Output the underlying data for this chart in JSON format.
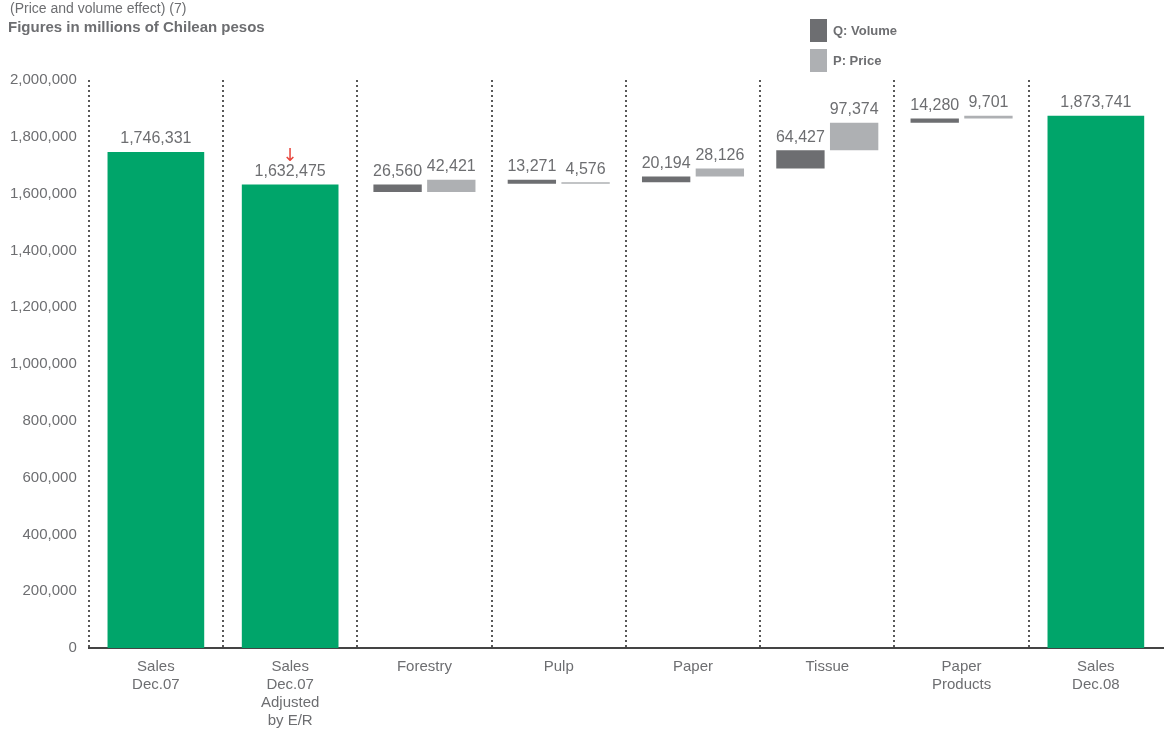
{
  "chart_data": {
    "type": "bar",
    "title": "Figures in millions of Chilean pesos",
    "subtitle": "(Price and volume effect) (7)",
    "categories": [
      "Sales Dec.07",
      "Sales Dec.07 Adjusted by E/R",
      "Forestry",
      "Pulp",
      "Paper",
      "Tissue",
      "Paper Products",
      "Sales Dec.08"
    ],
    "series": [
      {
        "color": "#00a56a",
        "values": [
          1746331,
          1632475,
          null,
          null,
          null,
          null,
          null,
          1873741
        ],
        "value_labels": [
          "1,746,331",
          "1,632,475",
          null,
          null,
          null,
          null,
          null,
          "1,873,741"
        ]
      },
      {
        "name": "Q: Volume",
        "color": "#6d6e71",
        "values": [
          null,
          null,
          26560,
          13271,
          20194,
          64427,
          14280,
          null
        ],
        "base": [
          null,
          null,
          1605915,
          1635065,
          1639641,
          1687961,
          1849762,
          null
        ],
        "value_labels": [
          null,
          null,
          "26,560",
          "13,271",
          "20,194",
          "64,427",
          "14,280",
          null
        ]
      },
      {
        "name": "P: Price",
        "color": "#aeb0b3",
        "values": [
          null,
          null,
          42421,
          4576,
          28126,
          97374,
          9701,
          null
        ],
        "base": [
          null,
          null,
          1605915,
          1635065,
          1659835,
          1752388,
          1864042,
          null
        ],
        "value_labels": [
          null,
          null,
          "42,421",
          "4,576",
          "28,126",
          "97,374",
          "9,701",
          null
        ]
      }
    ],
    "ylim": [
      0,
      2000000
    ],
    "yticks": [
      {
        "value": 0,
        "label": "0"
      },
      {
        "value": 200000,
        "label": "200,000"
      },
      {
        "value": 400000,
        "label": "400,000"
      },
      {
        "value": 600000,
        "label": "600,000"
      },
      {
        "value": 800000,
        "label": "800,000"
      },
      {
        "value": 1000000,
        "label": "1,000,000"
      },
      {
        "value": 1200000,
        "label": "1,200,000"
      },
      {
        "value": 1400000,
        "label": "1,400,000"
      },
      {
        "value": 1600000,
        "label": "1,600,000"
      },
      {
        "value": 1800000,
        "label": "1,800,000"
      },
      {
        "value": 2000000,
        "label": "2,000,000"
      }
    ],
    "grid": "x",
    "legend": "top right",
    "annotations": [
      "↓"
    ]
  }
}
